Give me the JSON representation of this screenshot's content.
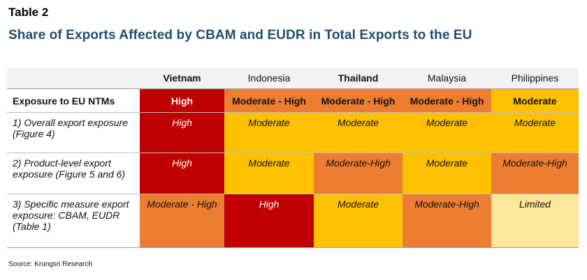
{
  "table_label": "Table 2",
  "title": "Share of Exports Affected by CBAM and EUDR in Total Exports to the EU",
  "columns": [
    "Vietnam",
    "Indonesia",
    "Thailand",
    "Malaysia",
    "Philippines"
  ],
  "exposure_row": {
    "label": "Exposure to EU NTMs",
    "values": [
      "High",
      "Moderate - High",
      "Moderate - High",
      "Moderate - High",
      "Moderate"
    ]
  },
  "rows": [
    {
      "label": "1) Overall export exposure (Figure 4)",
      "values": [
        "High",
        "Moderate",
        "Moderate",
        "Moderate",
        "Moderate"
      ]
    },
    {
      "label": "2) Product-level export exposure (Figure 5 and 6)",
      "values": [
        "High",
        "Moderate",
        "Moderate-High",
        "Moderate",
        "Moderate-High"
      ]
    },
    {
      "label": "3) Specific measure export exposure: CBAM, EUDR (Table 1)",
      "values": [
        "Moderate - High",
        "High",
        "Moderate",
        "Moderate-High",
        "Limited"
      ]
    }
  ],
  "colors": {
    "high": "#c00000",
    "moderate_high": "#ed7d31",
    "moderate": "#ffc000",
    "limited": "#ffe699",
    "title": "#1f4e6f",
    "header_bg": "#f2f2f2"
  },
  "source": "Source: Krungsri Research"
}
